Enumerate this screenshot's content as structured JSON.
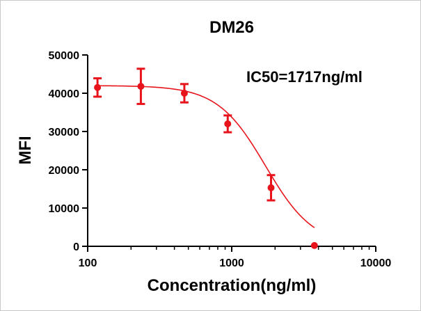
{
  "chart_data": {
    "type": "scatter",
    "title": "DM26",
    "xlabel": "Concentration(ng/ml)",
    "ylabel": "MFI",
    "annotation": "IC50=1717ng/ml",
    "x_scale": "log",
    "xlim": [
      100,
      10000
    ],
    "ylim": [
      0,
      50000
    ],
    "x_ticks": [
      100,
      1000,
      10000
    ],
    "x_tick_labels": [
      "100",
      "1000",
      "10000"
    ],
    "y_ticks": [
      0,
      10000,
      20000,
      30000,
      40000,
      50000
    ],
    "y_tick_labels": [
      "0",
      "10000",
      "20000",
      "30000",
      "40000",
      "50000"
    ],
    "grid": false,
    "series_color": "#e8141c",
    "points": [
      {
        "x": 117,
        "y": 41500,
        "err": 2400
      },
      {
        "x": 234,
        "y": 41800,
        "err": 4600
      },
      {
        "x": 469,
        "y": 40000,
        "err": 2400
      },
      {
        "x": 938,
        "y": 32000,
        "err": 2200
      },
      {
        "x": 1875,
        "y": 15300,
        "err": 3300
      },
      {
        "x": 3750,
        "y": 200,
        "err": 0
      }
    ],
    "fit_curve": {
      "model": "four-parameter logistic",
      "top": 42000,
      "bottom": 0,
      "ic50": 1717,
      "hill": 2.6,
      "x_range": [
        117,
        3750
      ]
    }
  }
}
